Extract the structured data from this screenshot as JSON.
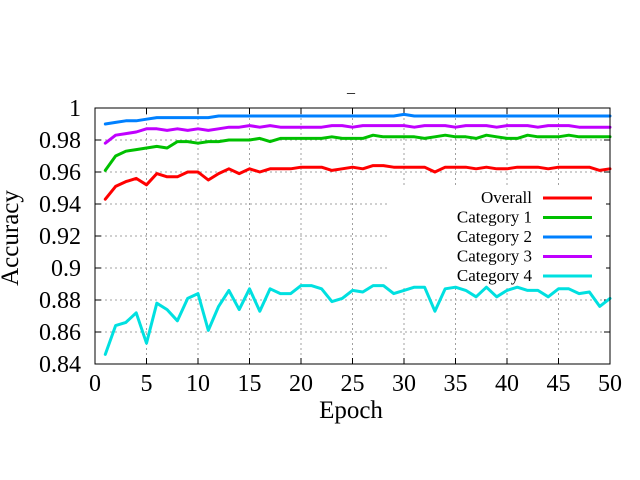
{
  "chart_data": {
    "type": "line",
    "title": "_",
    "xlabel": "Epoch",
    "ylabel": "Accuracy",
    "xlim": [
      0,
      50
    ],
    "ylim": [
      0.84,
      1.0
    ],
    "xticks": [
      "0",
      "5",
      "10",
      "15",
      "20",
      "25",
      "30",
      "35",
      "40",
      "45",
      "50"
    ],
    "yticks": [
      "0.84",
      "0.86",
      "0.88",
      "0.9",
      "0.92",
      "0.94",
      "0.96",
      "0.98",
      "1"
    ],
    "grid": true,
    "legend_position": "right",
    "x": [
      1,
      2,
      3,
      4,
      5,
      6,
      7,
      8,
      9,
      10,
      11,
      12,
      13,
      14,
      15,
      16,
      17,
      18,
      19,
      20,
      21,
      22,
      23,
      24,
      25,
      26,
      27,
      28,
      29,
      30,
      31,
      32,
      33,
      34,
      35,
      36,
      37,
      38,
      39,
      40,
      41,
      42,
      43,
      44,
      45,
      46,
      47,
      48,
      49,
      50
    ],
    "series": [
      {
        "name": "Overall",
        "color": "#ff0000",
        "values": [
          0.943,
          0.951,
          0.954,
          0.956,
          0.952,
          0.959,
          0.957,
          0.957,
          0.96,
          0.96,
          0.955,
          0.959,
          0.962,
          0.959,
          0.962,
          0.96,
          0.962,
          0.962,
          0.962,
          0.963,
          0.963,
          0.963,
          0.961,
          0.962,
          0.963,
          0.962,
          0.964,
          0.964,
          0.963,
          0.963,
          0.963,
          0.963,
          0.96,
          0.963,
          0.963,
          0.963,
          0.962,
          0.963,
          0.962,
          0.962,
          0.963,
          0.963,
          0.963,
          0.962,
          0.963,
          0.963,
          0.963,
          0.963,
          0.961,
          0.962
        ]
      },
      {
        "name": "Category 1",
        "color": "#00c000",
        "values": [
          0.961,
          0.97,
          0.973,
          0.974,
          0.975,
          0.976,
          0.975,
          0.979,
          0.979,
          0.978,
          0.979,
          0.979,
          0.98,
          0.98,
          0.98,
          0.981,
          0.979,
          0.981,
          0.981,
          0.981,
          0.981,
          0.981,
          0.982,
          0.981,
          0.981,
          0.981,
          0.983,
          0.982,
          0.982,
          0.982,
          0.982,
          0.981,
          0.982,
          0.983,
          0.982,
          0.982,
          0.981,
          0.983,
          0.982,
          0.981,
          0.981,
          0.983,
          0.982,
          0.982,
          0.982,
          0.983,
          0.982,
          0.982,
          0.982,
          0.982
        ]
      },
      {
        "name": "Category 2",
        "color": "#0080ff",
        "values": [
          0.99,
          0.991,
          0.992,
          0.992,
          0.993,
          0.994,
          0.994,
          0.994,
          0.994,
          0.994,
          0.994,
          0.995,
          0.995,
          0.995,
          0.995,
          0.995,
          0.995,
          0.995,
          0.995,
          0.995,
          0.995,
          0.995,
          0.995,
          0.995,
          0.995,
          0.995,
          0.995,
          0.995,
          0.995,
          0.996,
          0.995,
          0.995,
          0.995,
          0.995,
          0.995,
          0.995,
          0.995,
          0.995,
          0.995,
          0.995,
          0.995,
          0.995,
          0.995,
          0.995,
          0.995,
          0.995,
          0.995,
          0.995,
          0.995,
          0.995
        ]
      },
      {
        "name": "Category 3",
        "color": "#c000ff",
        "values": [
          0.978,
          0.983,
          0.984,
          0.985,
          0.987,
          0.987,
          0.986,
          0.987,
          0.986,
          0.987,
          0.986,
          0.987,
          0.988,
          0.988,
          0.989,
          0.988,
          0.989,
          0.988,
          0.988,
          0.988,
          0.988,
          0.988,
          0.989,
          0.989,
          0.988,
          0.989,
          0.989,
          0.989,
          0.989,
          0.989,
          0.988,
          0.989,
          0.989,
          0.989,
          0.988,
          0.989,
          0.989,
          0.989,
          0.988,
          0.989,
          0.989,
          0.989,
          0.988,
          0.989,
          0.989,
          0.989,
          0.988,
          0.988,
          0.988,
          0.988
        ]
      },
      {
        "name": "Category 4",
        "color": "#00e0e0",
        "values": [
          0.846,
          0.864,
          0.866,
          0.872,
          0.853,
          0.878,
          0.874,
          0.867,
          0.881,
          0.884,
          0.861,
          0.876,
          0.886,
          0.874,
          0.887,
          0.873,
          0.887,
          0.884,
          0.884,
          0.889,
          0.889,
          0.887,
          0.879,
          0.881,
          0.886,
          0.885,
          0.889,
          0.889,
          0.884,
          0.886,
          0.888,
          0.888,
          0.873,
          0.887,
          0.888,
          0.886,
          0.882,
          0.888,
          0.882,
          0.886,
          0.888,
          0.886,
          0.886,
          0.882,
          0.887,
          0.887,
          0.884,
          0.885,
          0.876,
          0.881
        ]
      }
    ]
  }
}
